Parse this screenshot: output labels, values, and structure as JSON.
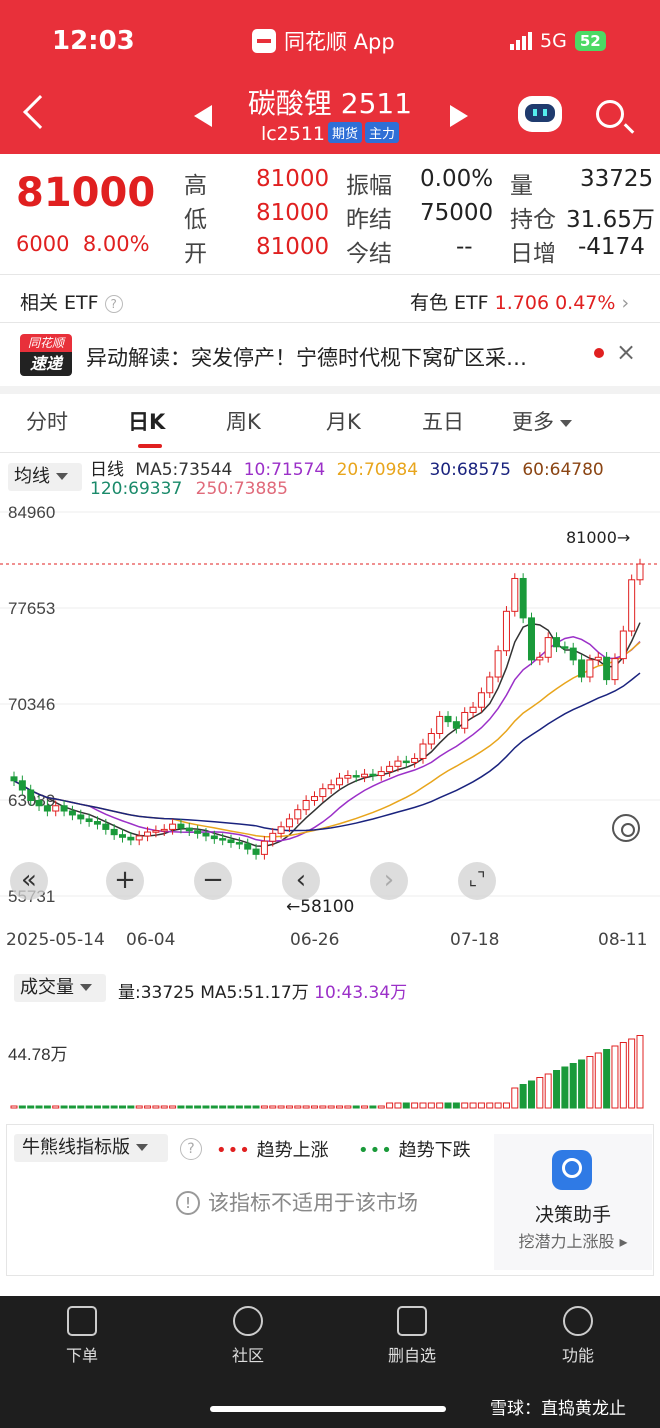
{
  "status": {
    "time": "12:03",
    "app": "同花顺 App",
    "network": "5G",
    "battery": "52"
  },
  "header": {
    "title": "碳酸锂 2511",
    "code": "lc2511",
    "tag1": "期货",
    "tag2": "主力"
  },
  "quote": {
    "last": "81000",
    "change": "6000",
    "change_pct": "8.00%",
    "high_label": "高",
    "high": "81000",
    "low_label": "低",
    "low": "81000",
    "open_label": "开",
    "open": "81000",
    "amp_label": "振幅",
    "amp": "0.00%",
    "preclose_label": "昨结",
    "preclose": "75000",
    "settle_label": "今结",
    "settle": "--",
    "vol_label": "量",
    "vol": "33725",
    "oi_label": "持仓",
    "oi": "31.65万",
    "daily_label": "日增",
    "daily": "-4174"
  },
  "etf": {
    "left_label": "相关 ETF",
    "name": "有色 ETF",
    "price": "1.706",
    "pct": "0.47%"
  },
  "news": {
    "logo_top": "同花顺",
    "logo_bottom": "速递",
    "text": "异动解读：突发停产！宁德时代枧下窝矿区采…",
    "close": "×"
  },
  "tabs": [
    "分时",
    "日K",
    "周K",
    "月K",
    "五日",
    "更多"
  ],
  "ma": {
    "selector": "均线",
    "period": "日线",
    "ma5": "MA5:73544",
    "ma10": "10:71574",
    "ma20": "20:70984",
    "ma30": "30:68575",
    "ma60": "60:64780",
    "ma120": "120:69337",
    "ma250": "250:73885"
  },
  "chart": {
    "y_labels": [
      "84960",
      "77653",
      "70346",
      "63039",
      "55731"
    ],
    "last_marker": "81000→",
    "low_marker": "←58100",
    "dates": [
      "2025-05-14",
      "06-04",
      "06-26",
      "07-18",
      "08-11"
    ],
    "nav": [
      "«",
      "+",
      "−",
      "‹",
      "›",
      "⌞⌝"
    ]
  },
  "volume": {
    "selector": "成交量",
    "vol": "量:33725",
    "ma5": "MA5:51.17万",
    "ma10": "10:43.34万",
    "y_label": "44.78万"
  },
  "indicator": {
    "selector": "牛熊线指标版",
    "help": "?",
    "dots_up": "•••",
    "up": "趋势上涨",
    "dots_down": "•••",
    "down": "趋势下跌",
    "notice": "该指标不适用于该市场",
    "notice_icon": "!"
  },
  "helper": {
    "title": "决策助手",
    "sub": "挖潜力上涨股 ▸"
  },
  "bottom": [
    "下单",
    "社区",
    "删自选",
    "功能"
  ],
  "watermark": "雪球：直捣黄龙止",
  "chart_data": {
    "type": "candlestick",
    "ylim": [
      55731,
      84960
    ],
    "y_ticks": [
      84960,
      77653,
      70346,
      63039,
      55731
    ],
    "x_ticks": [
      "2025-05-14",
      "06-04",
      "06-26",
      "07-18",
      "08-11"
    ],
    "low": 58100,
    "last": 81000,
    "closes": [
      64500,
      63800,
      63000,
      62600,
      62200,
      62600,
      62200,
      61900,
      61600,
      61400,
      61200,
      60800,
      60400,
      60200,
      60000,
      60300,
      60600,
      60700,
      60800,
      61200,
      60900,
      60700,
      60500,
      60300,
      60100,
      60000,
      59800,
      59700,
      59300,
      58900,
      59900,
      60500,
      61000,
      61600,
      62300,
      63000,
      63300,
      63900,
      64200,
      64700,
      64900,
      64800,
      65000,
      64900,
      65200,
      65600,
      66000,
      65900,
      66200,
      67300,
      68100,
      69400,
      69000,
      68500,
      69700,
      70100,
      71200,
      72400,
      74400,
      77400,
      79900,
      76900,
      73700,
      73900,
      75400,
      74700,
      74600,
      73700,
      72400,
      73700,
      73900,
      72200,
      73800,
      75900,
      79800,
      81000
    ]
  }
}
